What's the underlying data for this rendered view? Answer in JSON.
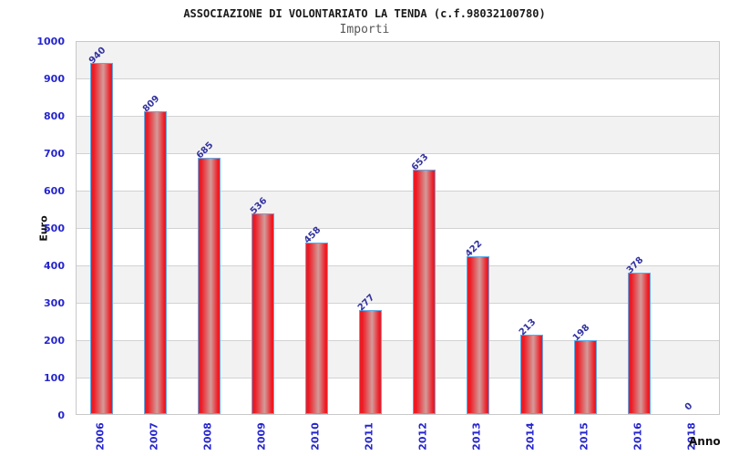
{
  "header": {
    "title": "ASSOCIAZIONE DI VOLONTARIATO LA TENDA (c.f.98032100780)",
    "subtitle": "Importi"
  },
  "chart_data": {
    "type": "bar",
    "title": "ASSOCIAZIONE DI VOLONTARIATO LA TENDA (c.f.98032100780)",
    "subtitle": "Importi",
    "categories": [
      "2006",
      "2007",
      "2008",
      "2009",
      "2010",
      "2011",
      "2012",
      "2013",
      "2014",
      "2015",
      "2016",
      "2018"
    ],
    "values": [
      940,
      809,
      685,
      536,
      458,
      277,
      653,
      422,
      213,
      198,
      378,
      0
    ],
    "xlabel": "Anno",
    "ylabel": "Euro",
    "ylim": [
      0,
      1000
    ],
    "ytick_step": 100,
    "yticks": [
      0,
      100,
      200,
      300,
      400,
      500,
      600,
      700,
      800,
      900,
      1000
    ],
    "grid": "alternating-horizontal-bands",
    "legend": "none",
    "colors": {
      "bar_fill": "#ed1b24",
      "bar_highlight": "#d39b99",
      "bar_border": "#5ea9e6",
      "axis_tick_label": "#2525cf",
      "value_label": "#3333a0",
      "band_gray": "#f2f2f2",
      "gridline": "#d2d2d2",
      "title_text": "#1a1a1a",
      "subtitle_text": "#575757"
    }
  }
}
